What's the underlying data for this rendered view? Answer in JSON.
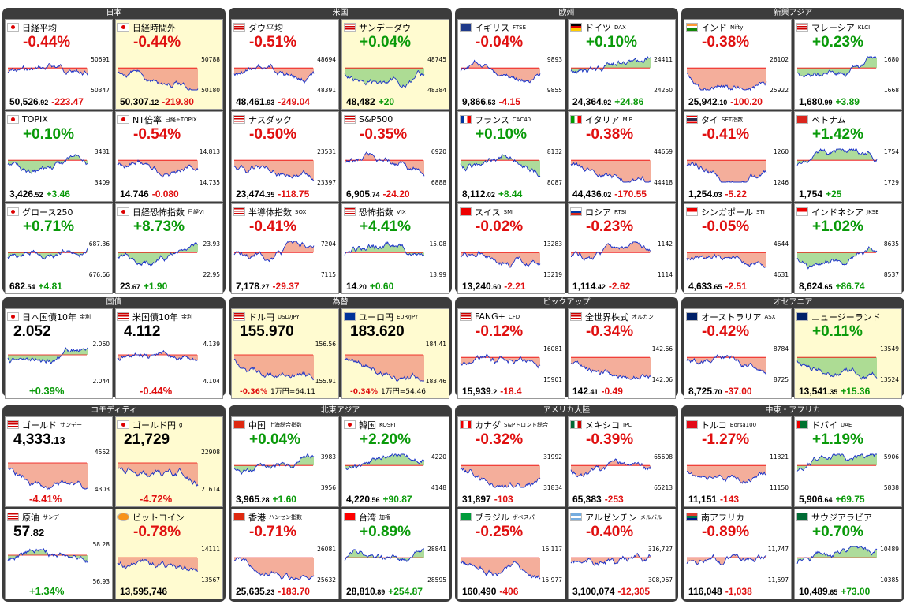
{
  "colors": {
    "up": "#0a9a0a",
    "down": "#e01010",
    "fill_up": "#9fd68a",
    "fill_down": "#f2a08a",
    "line": "#1830c8"
  },
  "groups": [
    {
      "title": "日本",
      "tiles": [
        {
          "name": "日経平均",
          "sub": "",
          "flag": "jp",
          "change_pct": "-0.44%",
          "value": "50,526",
          "dec": ".92",
          "change": "-223.47",
          "dir": -1,
          "ticks": [
            "50691",
            "50347"
          ],
          "trend": -1
        },
        {
          "name": "日経時間外",
          "sub": "",
          "flag": "jp",
          "change_pct": "-0.44%",
          "value": "50,307",
          "dec": ".12",
          "change": "-219.80",
          "dir": -1,
          "ticks": [
            "50788",
            "50180"
          ],
          "trend": -1,
          "yellow": true
        },
        {
          "name": "TOPIX",
          "sub": "",
          "flag": "jp",
          "change_pct": "+0.10%",
          "value": "3,426",
          "dec": ".52",
          "change": "+3.46",
          "dir": 1,
          "ticks": [
            "3431",
            "3409"
          ],
          "trend": 0
        },
        {
          "name": "NT倍率",
          "sub": "日経÷TOPIX",
          "flag": "jp",
          "change_pct": "-0.54%",
          "value": "14.746",
          "dec": "",
          "change": "-0.080",
          "dir": -1,
          "ticks": [
            "14.813",
            "14.735"
          ],
          "trend": -1
        },
        {
          "name": "グロース250",
          "sub": "",
          "flag": "jp",
          "change_pct": "+0.71%",
          "value": "682",
          "dec": ".54",
          "change": "+4.81",
          "dir": 1,
          "ticks": [
            "687.36",
            "676.66"
          ],
          "trend": 1
        },
        {
          "name": "日経恐怖指数",
          "sub": "日経VI",
          "flag": "jp",
          "change_pct": "+8.73%",
          "value": "23",
          "dec": ".67",
          "change": "+1.90",
          "dir": 1,
          "ticks": [
            "23.93",
            "22.95"
          ],
          "trend": 1,
          "bad": true
        }
      ]
    },
    {
      "title": "米国",
      "tiles": [
        {
          "name": "ダウ平均",
          "sub": "",
          "flag": "us",
          "change_pct": "-0.51%",
          "value": "48,461",
          "dec": ".93",
          "change": "-249.04",
          "dir": -1,
          "ticks": [
            "48694",
            "48391"
          ],
          "trend": -1
        },
        {
          "name": "サンデーダウ",
          "sub": "",
          "flag": "us",
          "change_pct": "+0.04%",
          "value": "48,482",
          "dec": "",
          "change": "+20",
          "dir": 1,
          "ticks": [
            "48745",
            "48384"
          ],
          "trend": 0,
          "yellow": true
        },
        {
          "name": "ナスダック",
          "sub": "",
          "flag": "us",
          "change_pct": "-0.50%",
          "value": "23,474",
          "dec": ".35",
          "change": "-118.75",
          "dir": -1,
          "ticks": [
            "23531",
            "23397"
          ],
          "trend": -1
        },
        {
          "name": "S&P500",
          "sub": "",
          "flag": "us",
          "change_pct": "-0.35%",
          "value": "6,905",
          "dec": ".74",
          "change": "-24.20",
          "dir": -1,
          "ticks": [
            "6920",
            "6888"
          ],
          "trend": -1
        },
        {
          "name": "半導体指数",
          "sub": "SOX",
          "flag": "us",
          "change_pct": "-0.41%",
          "value": "7,178",
          "dec": ".27",
          "change": "-29.37",
          "dir": -1,
          "ticks": [
            "7204",
            "7115"
          ],
          "trend": 1
        },
        {
          "name": "恐怖指数",
          "sub": "VIX",
          "flag": "us",
          "change_pct": "+4.41%",
          "value": "14",
          "dec": ".20",
          "change": "+0.60",
          "dir": 1,
          "ticks": [
            "15.08",
            "13.99"
          ],
          "trend": -1,
          "bad": true
        }
      ]
    },
    {
      "title": "欧州",
      "tiles": [
        {
          "name": "イギリス",
          "sub": "FTSE",
          "flag": "gb",
          "change_pct": "-0.04%",
          "value": "9,866",
          "dec": ".53",
          "change": "-4.15",
          "dir": -1,
          "ticks": [
            "9893",
            "9855"
          ],
          "trend": 0
        },
        {
          "name": "ドイツ",
          "sub": "DAX",
          "flag": "de",
          "change_pct": "+0.10%",
          "value": "24,364",
          "dec": ".92",
          "change": "+24.86",
          "dir": 1,
          "ticks": [
            "24411",
            "24250"
          ],
          "trend": 0
        },
        {
          "name": "フランス",
          "sub": "CAC40",
          "flag": "fr",
          "change_pct": "+0.10%",
          "value": "8,112",
          "dec": ".02",
          "change": "+8.44",
          "dir": 1,
          "ticks": [
            "8132",
            "8087"
          ],
          "trend": 0
        },
        {
          "name": "イタリア",
          "sub": "MIB",
          "flag": "it",
          "change_pct": "-0.38%",
          "value": "44,436",
          "dec": ".02",
          "change": "-170.55",
          "dir": -1,
          "ticks": [
            "44659",
            "44418"
          ],
          "trend": -1
        },
        {
          "name": "スイス",
          "sub": "SMI",
          "flag": "ch",
          "change_pct": "-0.02%",
          "value": "13,240",
          "dec": ".60",
          "change": "-2.21",
          "dir": -1,
          "ticks": [
            "13283",
            "13219"
          ],
          "trend": 0
        },
        {
          "name": "ロシア",
          "sub": "RTSI",
          "flag": "ru",
          "change_pct": "-0.23%",
          "value": "1,114",
          "dec": ".42",
          "change": "-2.62",
          "dir": -1,
          "ticks": [
            "1142",
            "1114"
          ],
          "trend": -1
        }
      ]
    },
    {
      "title": "新興アジア",
      "tiles": [
        {
          "name": "インド",
          "sub": "Nifty",
          "flag": "in",
          "change_pct": "-0.38%",
          "value": "25,942",
          "dec": ".10",
          "change": "-100.20",
          "dir": -1,
          "ticks": [
            "26102",
            "25922"
          ],
          "trend": -1
        },
        {
          "name": "マレーシア",
          "sub": "KLCI",
          "flag": "my",
          "change_pct": "+0.23%",
          "value": "1,680",
          "dec": ".99",
          "change": "+3.89",
          "dir": 1,
          "ticks": [
            "1680",
            "1668"
          ],
          "trend": 1
        },
        {
          "name": "タイ",
          "sub": "SET指数",
          "flag": "th",
          "change_pct": "-0.41%",
          "value": "1,254",
          "dec": ".03",
          "change": "-5.22",
          "dir": -1,
          "ticks": [
            "1260",
            "1246"
          ],
          "trend": -1
        },
        {
          "name": "ベトナム",
          "sub": "",
          "flag": "vn",
          "change_pct": "+1.42%",
          "value": "1,754",
          "dec": "",
          "change": "+25",
          "dir": 1,
          "ticks": [
            "1754",
            "1729"
          ],
          "trend": 1
        },
        {
          "name": "シンガポール",
          "sub": "STI",
          "flag": "sg",
          "change_pct": "-0.05%",
          "value": "4,633",
          "dec": ".65",
          "change": "-2.51",
          "dir": -1,
          "ticks": [
            "4644",
            "4631"
          ],
          "trend": 0
        },
        {
          "name": "インドネシア",
          "sub": "JKSE",
          "flag": "id",
          "change_pct": "+1.02%",
          "value": "8,624",
          "dec": ".65",
          "change": "+86.74",
          "dir": 1,
          "ticks": [
            "8635",
            "8537"
          ],
          "trend": 1
        }
      ]
    },
    {
      "title": "国債",
      "tiles": [
        {
          "name": "日本国債10年",
          "sub": "金利",
          "flag": "jp",
          "big": "2.052",
          "change_pct": "+0.39%",
          "dir": 1,
          "ticks": [
            "2.060",
            "2.044"
          ],
          "trend": 1,
          "bottom_pct": true
        },
        {
          "name": "米国債10年",
          "sub": "金利",
          "flag": "us",
          "big": "4.112",
          "change_pct": "-0.44%",
          "dir": -1,
          "ticks": [
            "4.139",
            "4.104"
          ],
          "trend": -1,
          "bottom_pct": true
        }
      ]
    },
    {
      "title": "為替",
      "tiles": [
        {
          "name": "ドル円",
          "sub": "USD/JPY",
          "flag": "us",
          "big": "155.970",
          "change_pct": "-0.36%",
          "dir": -1,
          "ticks": [
            "156.56",
            "155.91"
          ],
          "trend": -1,
          "yellow": true,
          "rate": "1万円=64.11"
        },
        {
          "name": "ユーロ円",
          "sub": "EUR/JPY",
          "flag": "eu",
          "big": "183.620",
          "change_pct": "-0.34%",
          "dir": -1,
          "ticks": [
            "184.41",
            "183.46"
          ],
          "trend": -1,
          "yellow": true,
          "rate": "1万円=54.46"
        }
      ]
    },
    {
      "title": "ピックアップ",
      "tiles": [
        {
          "name": "FANG+",
          "sub": "CFD",
          "flag": "us",
          "change_pct": "-0.12%",
          "value": "15,939",
          "dec": ".2",
          "change": "-18.4",
          "dir": -1,
          "ticks": [
            "16081",
            "15901"
          ],
          "trend": 0
        },
        {
          "name": "全世界株式",
          "sub": "オルカン",
          "flag": "us",
          "change_pct": "-0.34%",
          "value": "142",
          "dec": ".41",
          "change": "-0.49",
          "dir": -1,
          "ticks": [
            "142.66",
            "142.06"
          ],
          "trend": -1
        }
      ]
    },
    {
      "title": "オセアニア",
      "tiles": [
        {
          "name": "オーストラリア",
          "sub": "ASX",
          "flag": "au",
          "change_pct": "-0.42%",
          "value": "8,725",
          "dec": ".70",
          "change": "-37.00",
          "dir": -1,
          "ticks": [
            "8784",
            "8725"
          ],
          "trend": -1
        },
        {
          "name": "ニュージーランド",
          "sub": "",
          "flag": "nz",
          "change_pct": "+0.11%",
          "value": "13,541",
          "dec": ".35",
          "change": "+15.36",
          "dir": 1,
          "ticks": [
            "13549",
            "13524"
          ],
          "trend": 0,
          "yellow": true
        }
      ]
    },
    {
      "title": "コモディティ",
      "tiles": [
        {
          "name": "ゴールド",
          "sub": "サンデー",
          "flag": "us",
          "big": "4,333",
          "bigdec": ".13",
          "change_pct": "-4.41%",
          "dir": -1,
          "ticks": [
            "4552",
            "4303"
          ],
          "trend": -1,
          "bottom_pct": true
        },
        {
          "name": "ゴールド円",
          "sub": "g",
          "flag": "jp",
          "big": "21,729",
          "change_pct": "-4.72%",
          "dir": -1,
          "ticks": [
            "22908",
            "21614"
          ],
          "trend": -1,
          "bottom_pct": true,
          "yellow": true
        },
        {
          "name": "原油",
          "sub": "サンデー",
          "flag": "us",
          "big": "57",
          "bigdec": ".82",
          "change_pct": "+1.34%",
          "dir": 1,
          "ticks": [
            "58.28",
            "56.93"
          ],
          "trend": 1,
          "bottom_pct": true
        },
        {
          "name": "ビットコイン",
          "sub": "",
          "flag": "btc",
          "change_pct": "-0.78%",
          "value": "13,595,746",
          "dec": "",
          "change": "",
          "dir": -1,
          "ticks": [
            "14111",
            "13567"
          ],
          "trend": -1,
          "yellow": true
        }
      ]
    },
    {
      "title": "北東アジア",
      "tiles": [
        {
          "name": "中国",
          "sub": "上海総合指数",
          "flag": "cn",
          "change_pct": "+0.04%",
          "value": "3,965",
          "dec": ".28",
          "change": "+1.60",
          "dir": 1,
          "ticks": [
            "3983",
            "3956"
          ],
          "trend": 0
        },
        {
          "name": "韓国",
          "sub": "KOSPI",
          "flag": "kr",
          "change_pct": "+2.20%",
          "value": "4,220",
          "dec": ".56",
          "change": "+90.87",
          "dir": 1,
          "ticks": [
            "4220",
            "4148"
          ],
          "trend": 1
        },
        {
          "name": "香港",
          "sub": "ハンセン指数",
          "flag": "hk",
          "change_pct": "-0.71%",
          "value": "25,635",
          "dec": ".23",
          "change": "-183.70",
          "dir": -1,
          "ticks": [
            "26081",
            "25632"
          ],
          "trend": -1
        },
        {
          "name": "台湾",
          "sub": "加権",
          "flag": "tw",
          "change_pct": "+0.89%",
          "value": "28,810",
          "dec": ".89",
          "change": "+254.87",
          "dir": 1,
          "ticks": [
            "28841",
            "28595"
          ],
          "trend": 1
        }
      ]
    },
    {
      "title": "アメリカ大陸",
      "tiles": [
        {
          "name": "カナダ",
          "sub": "S&Pトロント総合",
          "flag": "ca",
          "change_pct": "-0.32%",
          "value": "31,897",
          "dec": "",
          "change": "-103",
          "dir": -1,
          "ticks": [
            "31992",
            "31834"
          ],
          "trend": -1
        },
        {
          "name": "メキシコ",
          "sub": "IPC",
          "flag": "mx",
          "change_pct": "-0.39%",
          "value": "65,383",
          "dec": "",
          "change": "-253",
          "dir": -1,
          "ticks": [
            "65608",
            "65213"
          ],
          "trend": -1
        },
        {
          "name": "ブラジル",
          "sub": "ボベスパ",
          "flag": "br",
          "change_pct": "-0.25%",
          "value": "160,490",
          "dec": "",
          "change": "-406",
          "dir": -1,
          "ticks": [
            "16.117",
            "15.977"
          ],
          "trend": 0
        },
        {
          "name": "アルゼンチン",
          "sub": "メルバル",
          "flag": "ar",
          "change_pct": "-0.40%",
          "value": "3,100,074",
          "dec": "",
          "change": "-12,305",
          "dir": -1,
          "ticks": [
            "316,727",
            "308,967"
          ],
          "trend": -1
        }
      ]
    },
    {
      "title": "中東・アフリカ",
      "tiles": [
        {
          "name": "トルコ",
          "sub": "Borsa100",
          "flag": "tr",
          "change_pct": "-1.27%",
          "value": "11,151",
          "dec": "",
          "change": "-143",
          "dir": -1,
          "ticks": [
            "11321",
            "11150"
          ],
          "trend": -1
        },
        {
          "name": "ドバイ",
          "sub": "UAE",
          "flag": "ae",
          "change_pct": "+1.19%",
          "value": "5,906",
          "dec": ".64",
          "change": "+69.75",
          "dir": 1,
          "ticks": [
            "5906",
            "5838"
          ],
          "trend": 1
        },
        {
          "name": "南アフリカ",
          "sub": "",
          "flag": "za",
          "change_pct": "-0.89%",
          "value": "116,048",
          "dec": "",
          "change": "-1,038",
          "dir": -1,
          "ticks": [
            "11,747",
            "11,597"
          ],
          "trend": -1
        },
        {
          "name": "サウジアラビア",
          "sub": "",
          "flag": "sa",
          "change_pct": "+0.70%",
          "value": "10,489",
          "dec": ".65",
          "change": "+73.00",
          "dir": 1,
          "ticks": [
            "10489",
            "10385"
          ],
          "trend": 1
        }
      ]
    }
  ]
}
